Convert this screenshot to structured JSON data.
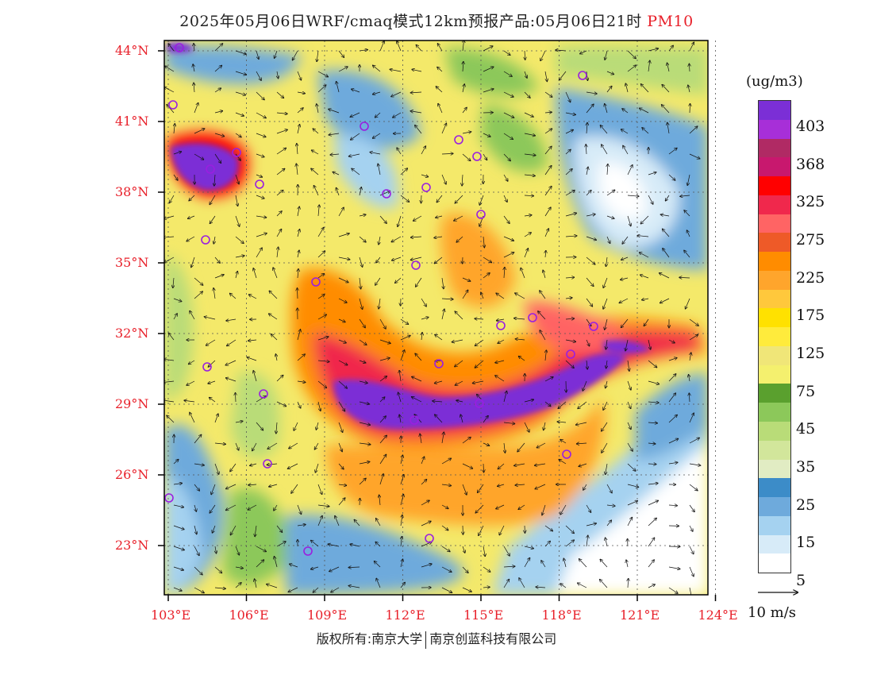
{
  "title": {
    "prefix": "2025年05月06日WRF/cmaq模式12km预报产品:05月06日21时",
    "pollutant": "PM10"
  },
  "legend": {
    "unit": "(ug/m3)",
    "labels": [
      "403",
      "368",
      "325",
      "275",
      "225",
      "175",
      "125",
      "75",
      "45",
      "35",
      "25",
      "15",
      "5"
    ],
    "colors": [
      "#7b2fd6",
      "#a72fd8",
      "#b02a64",
      "#c8186e",
      "#ff0000",
      "#f0284c",
      "#ff6464",
      "#ee5a28",
      "#ff8c00",
      "#ffa52c",
      "#ffc83c",
      "#ffe100",
      "#ffeb3c",
      "#f0e678",
      "#f4f06e",
      "#5aa02e",
      "#8cc85a",
      "#b9dc78",
      "#d2e69b",
      "#e1ecc3",
      "#3c8cc8",
      "#6eaadc",
      "#a5d2f0",
      "#d7ebf8",
      "#ffffff"
    ]
  },
  "axes": {
    "lat_labels": [
      "44°N",
      "41°N",
      "38°N",
      "35°N",
      "32°N",
      "29°N",
      "26°N",
      "23°N"
    ],
    "lon_labels": [
      "103°E",
      "106°E",
      "109°E",
      "112°E",
      "115°E",
      "118°E",
      "121°E",
      "124°E"
    ]
  },
  "wind_reference": {
    "label": "10 m/s"
  },
  "copyright": {
    "left": "版权所有:南京大学",
    "right": "南京创蓝科技有限公司"
  }
}
